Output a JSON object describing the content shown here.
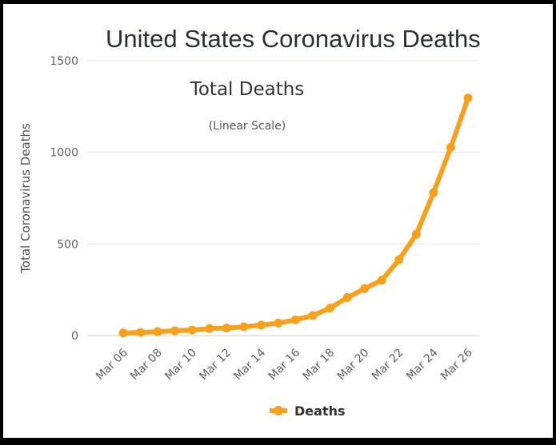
{
  "page": {
    "heading": "United States Coronavirus Deaths"
  },
  "chart_data": {
    "type": "line",
    "title": "Total Deaths",
    "subtitle": "(Linear Scale)",
    "xlabel": "",
    "ylabel": "Total Coronavirus Deaths",
    "ylim": [
      0,
      1500
    ],
    "yticks": [
      0,
      500,
      1000,
      1500
    ],
    "categories": [
      "Mar 06",
      "Mar 07",
      "Mar 08",
      "Mar 09",
      "Mar 10",
      "Mar 11",
      "Mar 12",
      "Mar 13",
      "Mar 14",
      "Mar 15",
      "Mar 16",
      "Mar 17",
      "Mar 18",
      "Mar 19",
      "Mar 20",
      "Mar 21",
      "Mar 22",
      "Mar 23",
      "Mar 24",
      "Mar 25",
      "Mar 26"
    ],
    "xtick_labels": [
      "Mar 06",
      "Mar 08",
      "Mar 10",
      "Mar 12",
      "Mar 14",
      "Mar 16",
      "Mar 18",
      "Mar 20",
      "Mar 22",
      "Mar 24",
      "Mar 26"
    ],
    "series": [
      {
        "name": "Deaths",
        "color": "#f7a01c",
        "values": [
          14,
          17,
          21,
          26,
          30,
          38,
          41,
          48,
          57,
          68,
          86,
          109,
          150,
          207,
          256,
          302,
          414,
          553,
          780,
          1027,
          1296
        ]
      }
    ],
    "grid": true,
    "legend": "bottom-center"
  }
}
